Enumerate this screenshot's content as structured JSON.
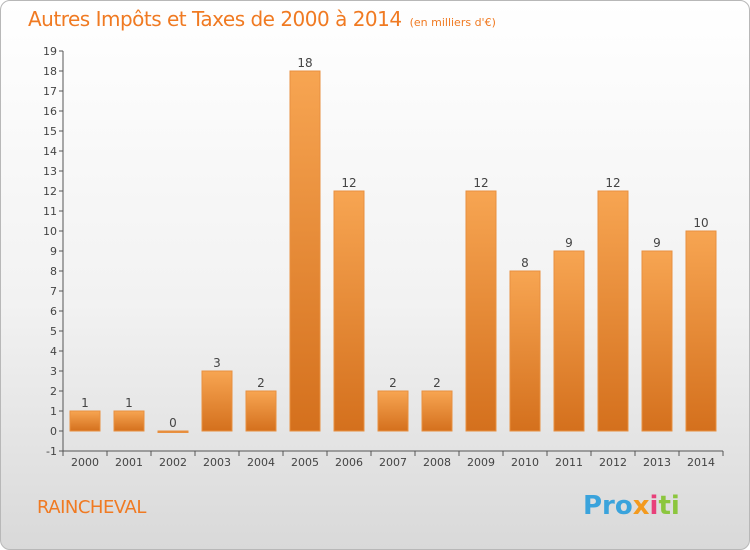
{
  "title": "Autres Impôts et Taxes de 2000 à 2014",
  "unit_label": "(en milliers d'€)",
  "commune": "RAINCHEVAL",
  "logo": {
    "parts": [
      "Pro",
      "x",
      "i",
      "ti"
    ]
  },
  "colors": {
    "accent": "#f07a22",
    "bar_top": "#f7a552",
    "bar_bottom": "#d4701d"
  },
  "chart_data": {
    "type": "bar",
    "categories": [
      "2000",
      "2001",
      "2002",
      "2003",
      "2004",
      "2005",
      "2006",
      "2007",
      "2008",
      "2009",
      "2010",
      "2011",
      "2012",
      "2013",
      "2014"
    ],
    "values": [
      1,
      1,
      0,
      3,
      2,
      18,
      12,
      2,
      2,
      12,
      8,
      9,
      12,
      9,
      10
    ],
    "labels": [
      "1",
      "1",
      "0",
      "3",
      "2",
      "18",
      "12",
      "2",
      "2",
      "12",
      "8",
      "9",
      "12",
      "9",
      "10"
    ],
    "ylim": [
      -1,
      19
    ],
    "yticks": [
      -1,
      0,
      1,
      2,
      3,
      4,
      5,
      6,
      7,
      8,
      9,
      10,
      11,
      12,
      13,
      14,
      15,
      16,
      17,
      18,
      19
    ],
    "grid": false
  }
}
